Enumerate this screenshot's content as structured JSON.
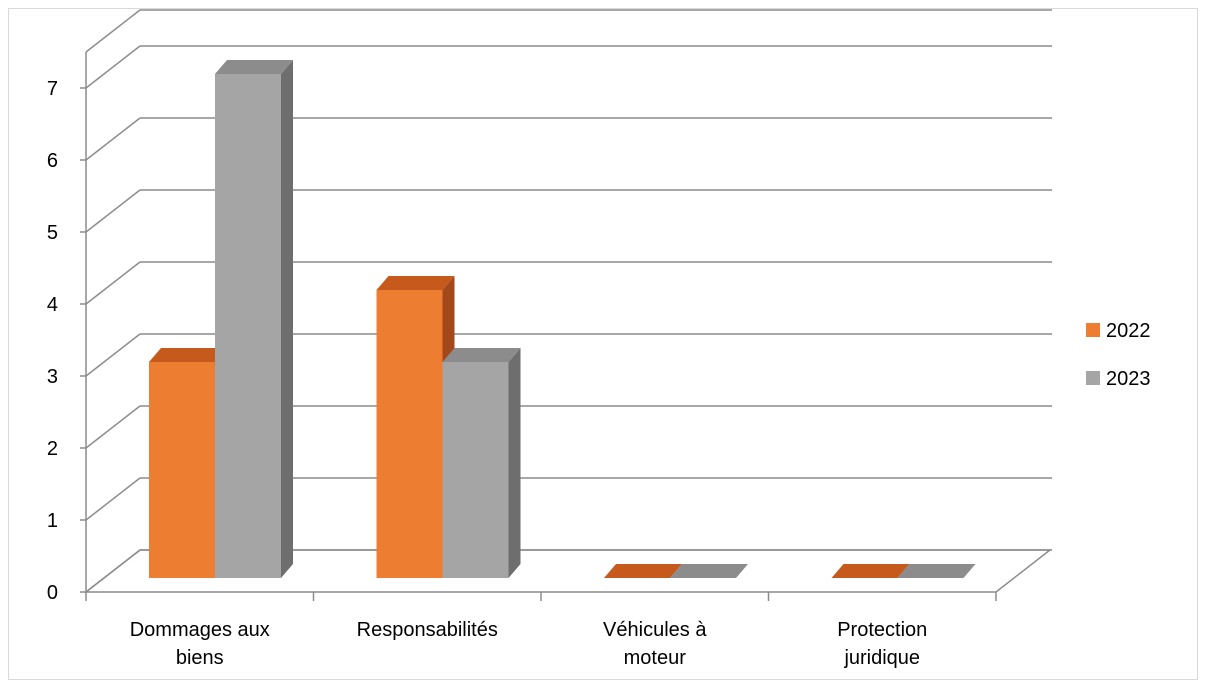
{
  "chart_data": {
    "type": "bar",
    "variant": "3d-clustered-column",
    "title": "",
    "xlabel": "",
    "ylabel": "",
    "categories": [
      [
        "Dommages aux",
        "biens"
      ],
      [
        "Responsabilités"
      ],
      [
        "Véhicules à",
        "moteur"
      ],
      [
        "Protection",
        "juridique"
      ]
    ],
    "series": [
      {
        "name": "2022",
        "values": [
          3,
          4,
          0,
          0
        ],
        "color": "#ED7D31",
        "top_color": "#C55A1C",
        "side_color": "#A2481A"
      },
      {
        "name": "2023",
        "values": [
          7,
          3,
          0,
          0
        ],
        "color": "#A5A5A5",
        "top_color": "#8C8C8C",
        "side_color": "#6E6E6E"
      }
    ],
    "ylim": [
      0,
      7
    ],
    "yticks": [
      "0",
      "1",
      "2",
      "3",
      "4",
      "5",
      "6",
      "7"
    ],
    "grid": true,
    "legend_position": "right"
  }
}
